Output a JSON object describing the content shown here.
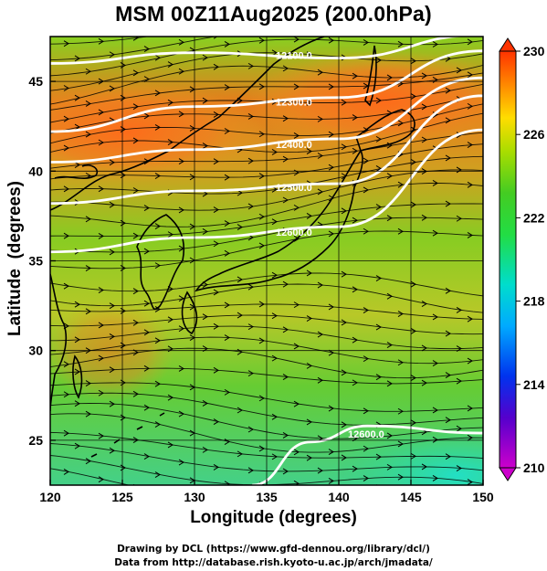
{
  "title": "MSM 00Z11Aug2025 (200.0hPa)",
  "axes": {
    "xlabel": "Longitude (degrees)",
    "ylabel": "Latitude  (degrees)",
    "x_ticks": [
      "120",
      "125",
      "130",
      "135",
      "140",
      "145",
      "150"
    ],
    "y_ticks": [
      "25",
      "30",
      "35",
      "40",
      "45"
    ],
    "xlim": [
      120,
      150
    ],
    "ylim": [
      22.5,
      47.5
    ]
  },
  "colorbar": {
    "ticks": [
      "230",
      "226",
      "222",
      "218",
      "214",
      "210"
    ],
    "range": [
      210,
      230
    ]
  },
  "contours": [
    {
      "label": "12100.0",
      "lat_at_lon": [
        [
          120,
          46.0
        ],
        [
          130,
          46.6
        ],
        [
          140,
          46.3
        ],
        [
          150,
          47.6
        ]
      ]
    },
    {
      "label": "12300.0",
      "lat_at_lon": [
        [
          120,
          42.2
        ],
        [
          130,
          43.6
        ],
        [
          140,
          44.1
        ],
        [
          150,
          46.7
        ]
      ]
    },
    {
      "label": "12400.0",
      "lat_at_lon": [
        [
          120,
          40.5
        ],
        [
          130,
          41.2
        ],
        [
          140,
          41.8
        ],
        [
          150,
          45.2
        ]
      ]
    },
    {
      "label": "12500.0",
      "lat_at_lon": [
        [
          120,
          38.2
        ],
        [
          130,
          38.9
        ],
        [
          140,
          39.3
        ],
        [
          150,
          44.2
        ]
      ]
    },
    {
      "label": "12600.0",
      "lat_at_lon": [
        [
          120,
          35.5
        ],
        [
          130,
          36.3
        ],
        [
          140,
          36.9
        ],
        [
          150,
          42.3
        ]
      ]
    },
    {
      "label": "12600.0",
      "lat_at_lon": [
        [
          134,
          22.5
        ],
        [
          138,
          24.9
        ],
        [
          142,
          25.8
        ],
        [
          150,
          25.4
        ]
      ]
    }
  ],
  "colors": {
    "warm": "#e85a1c",
    "mid": "#33cc33",
    "cool": "#30d8c0",
    "contour": "#ffffff",
    "coast": "#000000"
  },
  "credits": {
    "line1": "Drawing by DCL (https://www.gfd-dennou.org/library/dcl/)",
    "line2": "Data from http://database.rish.kyoto-u.ac.jp/arch/jmadata/"
  }
}
